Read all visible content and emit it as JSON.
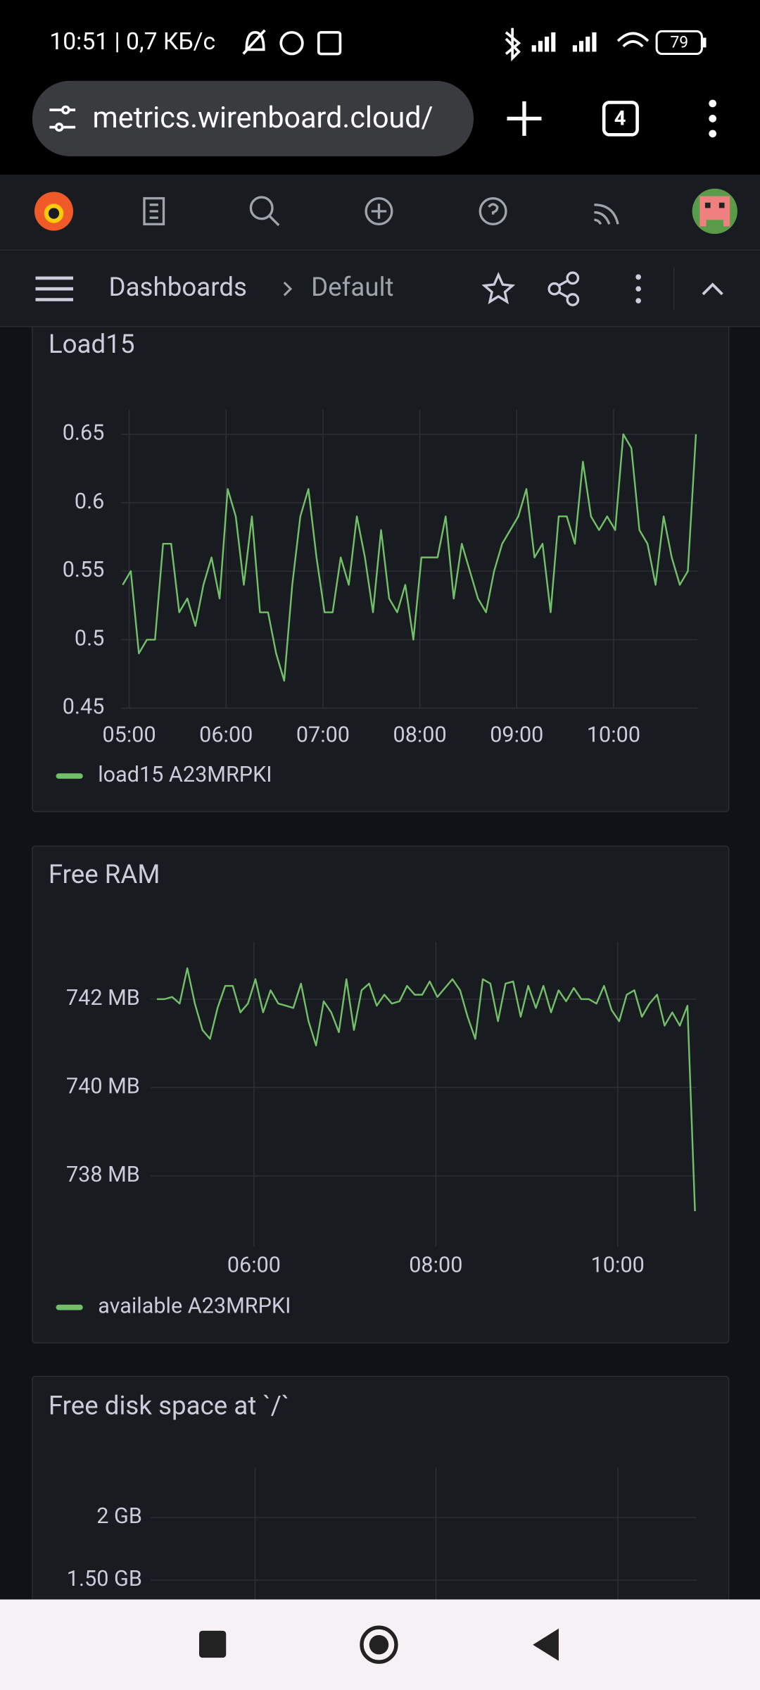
{
  "status_bar": {
    "time": "10:51 | 0,7 КБ/с",
    "battery": "79"
  },
  "browser": {
    "url": "metrics.wirenboard.cloud/",
    "tab_count": 4
  },
  "breadcrumb": {
    "parent": "Dashboards",
    "current": "Default"
  },
  "panels": [
    {
      "title": "Load15",
      "type": "line",
      "x": [
        "04:56",
        "05:01",
        "05:06",
        "05:11",
        "05:16",
        "05:21",
        "05:26",
        "05:31",
        "05:36",
        "05:41",
        "05:46",
        "05:51",
        "05:56",
        "06:01",
        "06:06",
        "06:11",
        "06:16",
        "06:21",
        "06:26",
        "06:31",
        "06:36",
        "06:41",
        "06:46",
        "06:51",
        "06:56",
        "07:01",
        "07:06",
        "07:11",
        "07:16",
        "07:21",
        "07:26",
        "07:31",
        "07:36",
        "07:41",
        "07:46",
        "07:51",
        "07:56",
        "08:01",
        "08:06",
        "08:11",
        "08:16",
        "08:21",
        "08:26",
        "08:31",
        "08:36",
        "08:41",
        "08:46",
        "08:51",
        "08:56",
        "09:01",
        "09:06",
        "09:11",
        "09:16",
        "09:21",
        "09:26",
        "09:31",
        "09:36",
        "09:41",
        "09:46",
        "09:51",
        "09:56",
        "10:01",
        "10:06",
        "10:11",
        "10:16",
        "10:21",
        "10:26",
        "10:31",
        "10:36",
        "10:41",
        "10:46",
        "10:51"
      ],
      "series": [
        {
          "name": "load15 A23MRPKI",
          "color": "#73bf69",
          "values": [
            0.54,
            0.55,
            0.49,
            0.5,
            0.5,
            0.57,
            0.57,
            0.52,
            0.53,
            0.51,
            0.54,
            0.56,
            0.53,
            0.61,
            0.59,
            0.54,
            0.59,
            0.52,
            0.52,
            0.49,
            0.47,
            0.54,
            0.59,
            0.61,
            0.56,
            0.52,
            0.52,
            0.56,
            0.54,
            0.59,
            0.56,
            0.52,
            0.58,
            0.53,
            0.52,
            0.54,
            0.5,
            0.56,
            0.56,
            0.56,
            0.59,
            0.53,
            0.57,
            0.55,
            0.53,
            0.52,
            0.55,
            0.57,
            0.58,
            0.59,
            0.61,
            0.56,
            0.57,
            0.52,
            0.59,
            0.59,
            0.57,
            0.63,
            0.59,
            0.58,
            0.59,
            0.58,
            0.65,
            0.64,
            0.58,
            0.57,
            0.54,
            0.59,
            0.56,
            0.54,
            0.55,
            0.65
          ]
        }
      ],
      "xlim": [
        "04:55",
        "10:52"
      ],
      "xticks": [
        "05:00",
        "06:00",
        "07:00",
        "08:00",
        "09:00",
        "10:00"
      ],
      "ylim": [
        0.45,
        0.668
      ],
      "yticks": [
        0.65,
        0.6,
        0.55,
        0.5,
        0.45
      ],
      "grid": true
    },
    {
      "title": "Free RAM",
      "type": "line",
      "x": [
        "04:56",
        "05:01",
        "05:06",
        "05:11",
        "05:16",
        "05:21",
        "05:26",
        "05:31",
        "05:36",
        "05:41",
        "05:46",
        "05:51",
        "05:56",
        "06:01",
        "06:06",
        "06:11",
        "06:16",
        "06:21",
        "06:26",
        "06:31",
        "06:36",
        "06:41",
        "06:46",
        "06:51",
        "06:56",
        "07:01",
        "07:06",
        "07:11",
        "07:16",
        "07:21",
        "07:26",
        "07:31",
        "07:36",
        "07:41",
        "07:46",
        "07:51",
        "07:56",
        "08:01",
        "08:06",
        "08:11",
        "08:16",
        "08:21",
        "08:26",
        "08:31",
        "08:36",
        "08:41",
        "08:46",
        "08:51",
        "08:56",
        "09:01",
        "09:06",
        "09:11",
        "09:16",
        "09:21",
        "09:26",
        "09:31",
        "09:36",
        "09:41",
        "09:46",
        "09:51",
        "09:56",
        "10:01",
        "10:06",
        "10:11",
        "10:16",
        "10:21",
        "10:26",
        "10:31",
        "10:36",
        "10:41",
        "10:46",
        "10:51"
      ],
      "series": [
        {
          "name": "available A23MRPKI",
          "color": "#73bf69",
          "values": [
            742.0,
            742.0,
            742.05,
            741.9,
            742.7,
            741.9,
            741.3,
            741.1,
            741.8,
            742.3,
            742.3,
            741.7,
            741.9,
            742.45,
            741.7,
            742.2,
            741.9,
            741.85,
            741.8,
            742.35,
            741.5,
            740.95,
            741.95,
            741.7,
            741.25,
            742.45,
            741.3,
            742.2,
            742.35,
            741.85,
            742.1,
            741.9,
            741.95,
            742.3,
            742.1,
            742.1,
            742.4,
            742.05,
            742.25,
            742.45,
            742.2,
            741.6,
            741.1,
            742.45,
            742.35,
            741.5,
            742.35,
            742.4,
            741.6,
            742.3,
            741.8,
            742.3,
            741.7,
            742.2,
            741.95,
            742.25,
            742.0,
            742.0,
            741.9,
            742.3,
            741.75,
            741.5,
            742.1,
            742.2,
            741.6,
            741.9,
            742.1,
            741.4,
            741.7,
            741.4,
            741.85,
            737.2
          ]
        }
      ],
      "xlim": [
        "04:52",
        "10:52"
      ],
      "xticks": [
        "06:00",
        "08:00",
        "10:00"
      ],
      "ylim": [
        736.4,
        743.3
      ],
      "yticks": [
        {
          "value": 742,
          "label": "742 MB"
        },
        {
          "value": 740,
          "label": "740 MB"
        },
        {
          "value": 738,
          "label": "738 MB"
        }
      ],
      "grid": true
    },
    {
      "title": "Free disk space at `/`",
      "type": "line",
      "ylim": [
        0,
        2.4
      ],
      "yticks": [
        {
          "value": 2,
          "label": "2 GB"
        },
        {
          "value": 1.5,
          "label": "1.50 GB"
        }
      ],
      "grid": true
    }
  ]
}
